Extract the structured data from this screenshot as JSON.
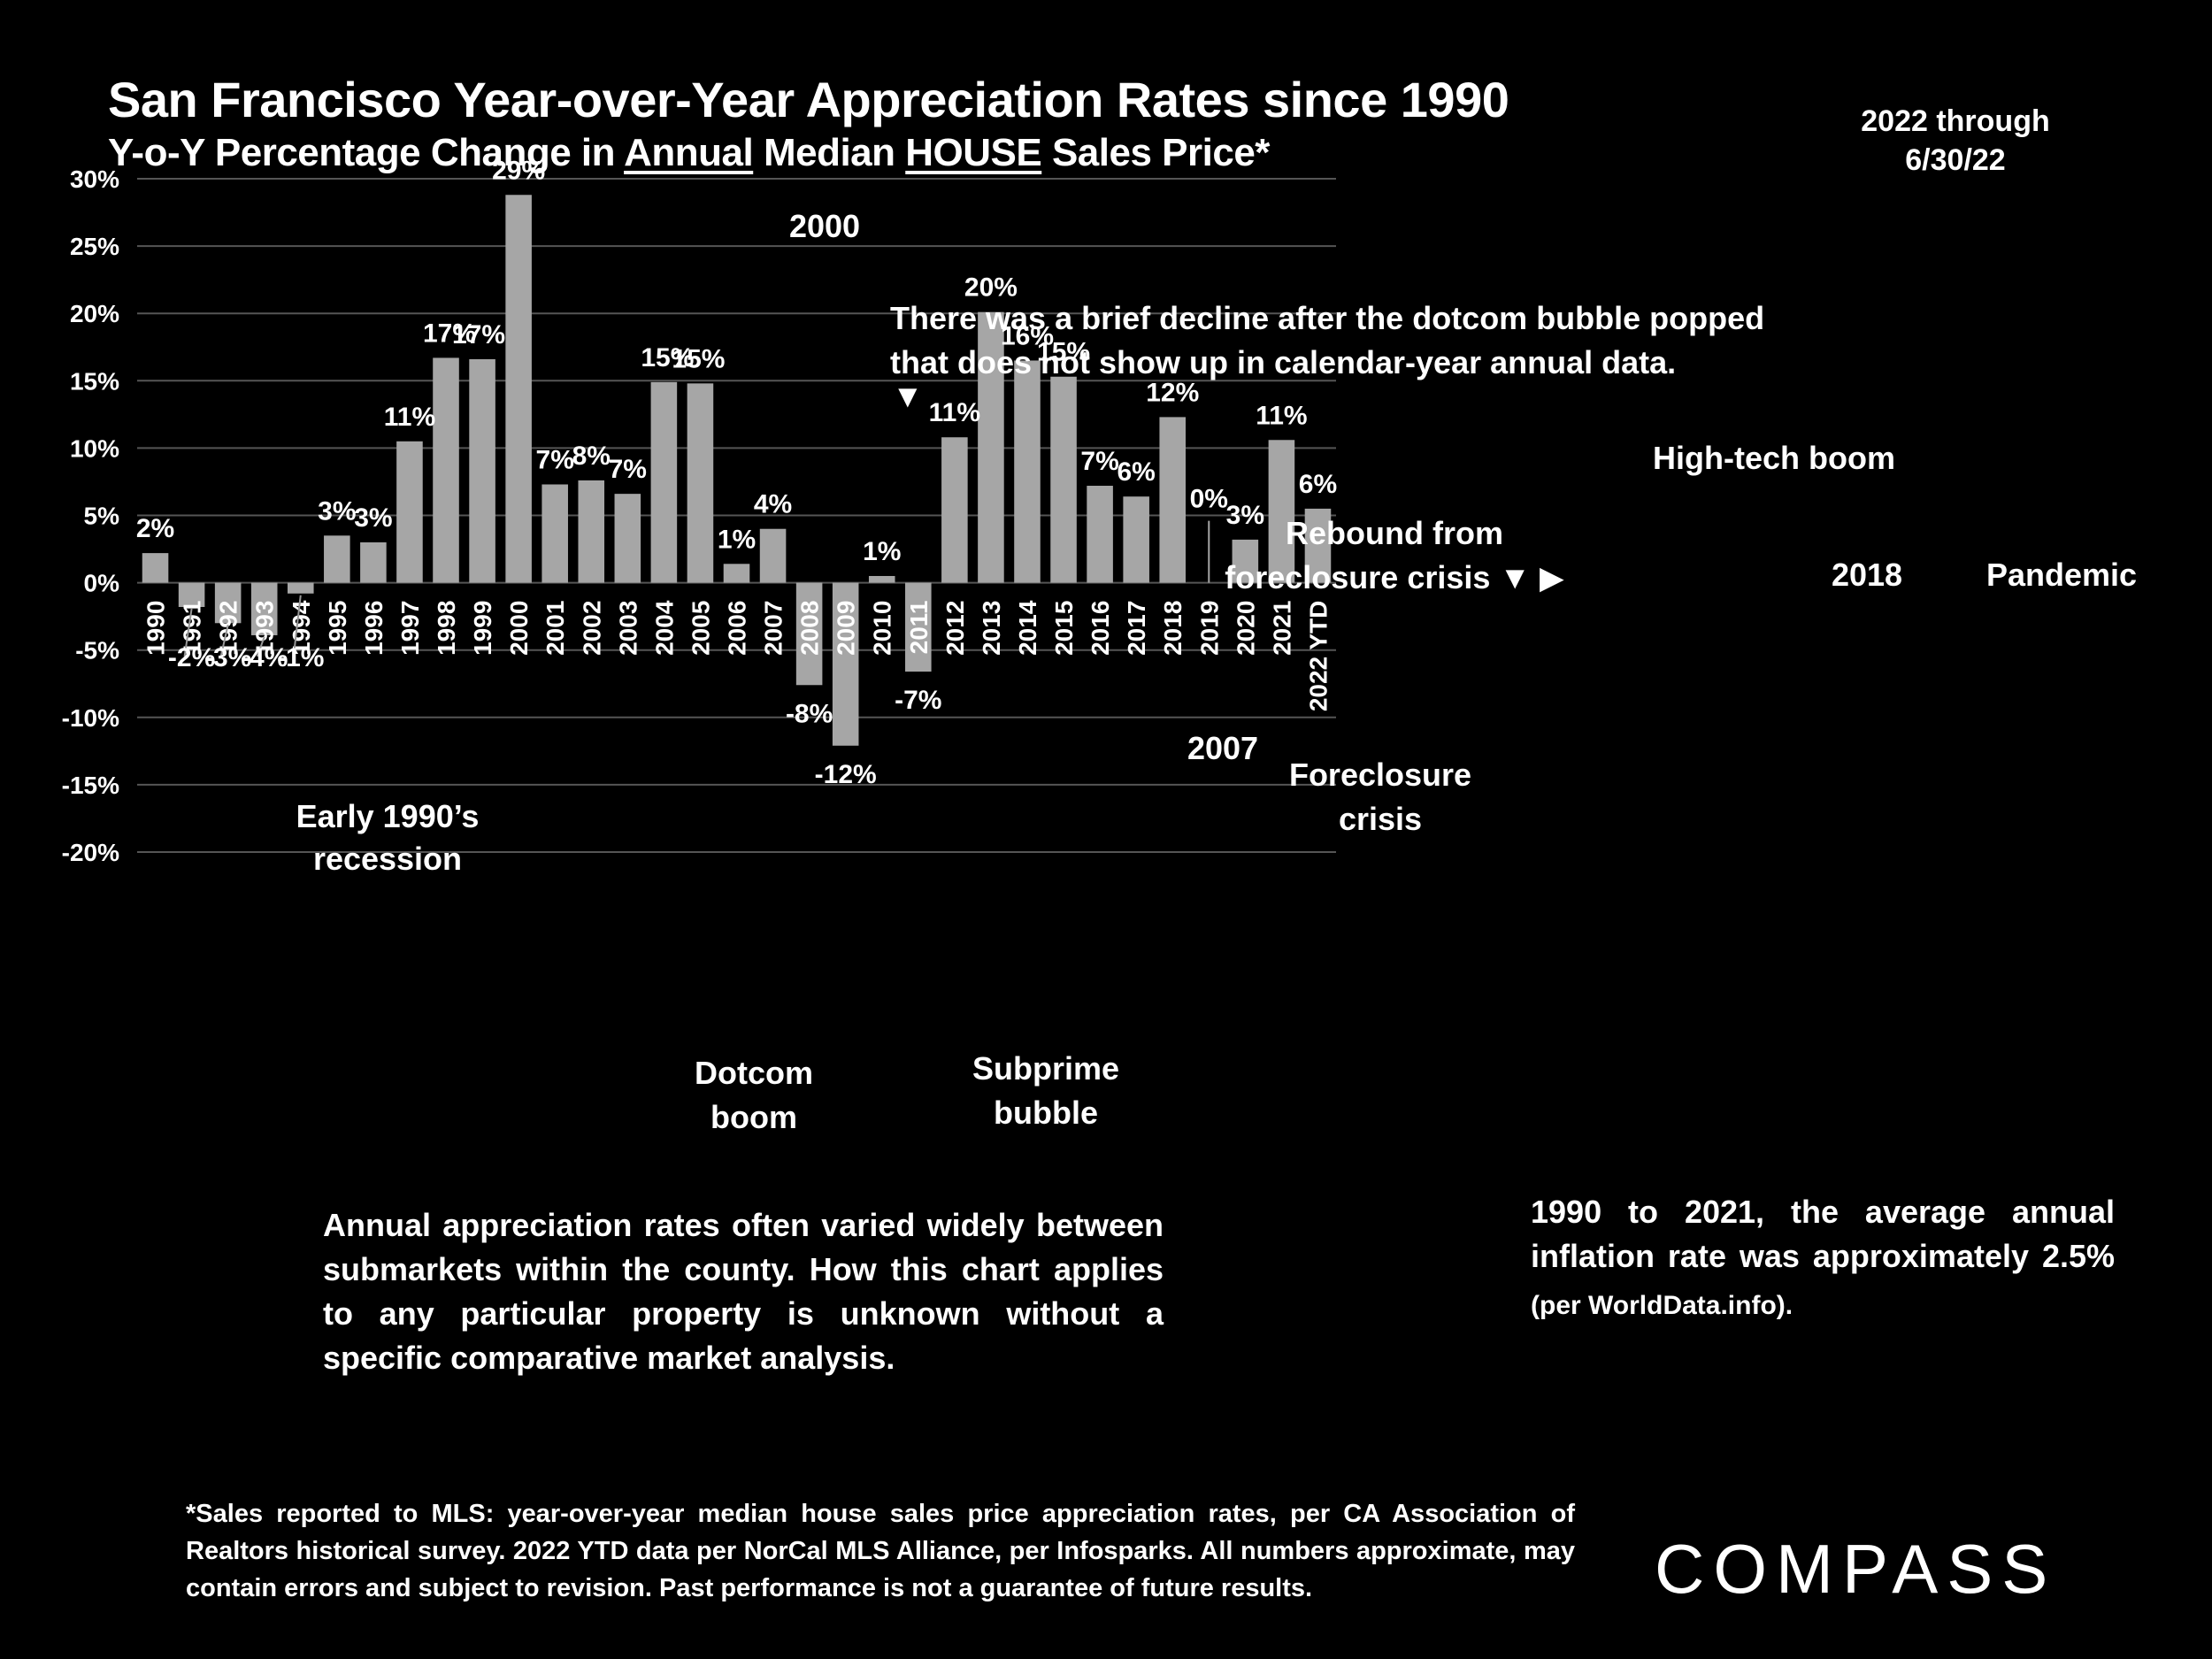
{
  "header": {
    "title": "San Francisco Year-over-Year Appreciation Rates since 1990",
    "subtitle_parts": [
      "Y-o-Y Percentage Change in ",
      "Annual",
      " Median ",
      "HOUSE",
      " Sales Price*"
    ],
    "as_of_line1": "2022 through",
    "as_of_line2": "6/30/22"
  },
  "chart_data": {
    "type": "bar",
    "title": "San Francisco Year-over-Year Appreciation Rates since 1990",
    "subtitle": "Y-o-Y Percentage Change in Annual Median HOUSE Sales Price*",
    "xlabel": "",
    "ylabel": "",
    "ylim": [
      -20,
      30
    ],
    "yticks": [
      30,
      25,
      20,
      15,
      10,
      5,
      0,
      -5,
      -10,
      -15,
      -20
    ],
    "ytick_labels": [
      "30%",
      "25%",
      "20%",
      "15%",
      "10%",
      "5%",
      "0%",
      "-5%",
      "-10%",
      "-15%",
      "-20%"
    ],
    "grid": true,
    "bar_color": "#a6a6a6",
    "categories": [
      "1990",
      "1991",
      "1992",
      "1993",
      "1994",
      "1995",
      "1996",
      "1997",
      "1998",
      "1999",
      "2000",
      "2001",
      "2002",
      "2003",
      "2004",
      "2005",
      "2006",
      "2007",
      "2008",
      "2009",
      "2010",
      "2011",
      "2012",
      "2013",
      "2014",
      "2015",
      "2016",
      "2017",
      "2018",
      "2019",
      "2020",
      "2021",
      "2022 YTD"
    ],
    "values": [
      2.2,
      -1.8,
      -3.0,
      -3.9,
      -0.8,
      3.5,
      3.0,
      10.5,
      16.7,
      16.6,
      28.8,
      7.3,
      7.6,
      6.6,
      14.9,
      14.8,
      1.4,
      4.0,
      -7.6,
      -12.1,
      0.5,
      -6.6,
      10.8,
      20.1,
      16.5,
      15.3,
      7.2,
      6.4,
      12.3,
      0.0,
      3.2,
      10.6,
      5.5
    ],
    "data_labels": [
      "2%",
      "-2%",
      "-3%",
      "-4%",
      "-1%",
      "3%",
      "3%",
      "11%",
      "17%",
      "17%",
      "29%",
      "7%",
      "8%",
      "7%",
      "15%",
      "15%",
      "1%",
      "4%",
      "-8%",
      "-12%",
      "1%",
      "-7%",
      "11%",
      "20%",
      "16%",
      "15%",
      "7%",
      "6%",
      "12%",
      "0%",
      "3%",
      "11%",
      "6%"
    ],
    "annotations": [
      {
        "id": "early-1990s",
        "lines": [
          "Early 1990’s",
          "recession"
        ]
      },
      {
        "id": "year-2000",
        "lines": [
          "2000"
        ]
      },
      {
        "id": "dotcom-decline",
        "lines": [
          "There was a brief decline after the dotcom bubble popped",
          "that does not show up in calendar-year annual data."
        ],
        "marker": "▼"
      },
      {
        "id": "dotcom-boom",
        "lines": [
          "Dotcom",
          "boom"
        ]
      },
      {
        "id": "subprime",
        "lines": [
          "Subprime",
          "bubble"
        ]
      },
      {
        "id": "year-2007",
        "lines": [
          "2007"
        ]
      },
      {
        "id": "foreclosure",
        "lines": [
          "Foreclosure",
          "crisis"
        ]
      },
      {
        "id": "rebound",
        "lines": [
          "Rebound from",
          "foreclosure crisis ▼ ▶"
        ]
      },
      {
        "id": "high-tech",
        "lines": [
          "High-tech boom"
        ]
      },
      {
        "id": "year-2018",
        "lines": [
          "2018"
        ]
      },
      {
        "id": "pandemic",
        "lines": [
          "Pandemic"
        ]
      }
    ]
  },
  "notes": {
    "left": "Annual appreciation rates often varied widely between submarkets within the county. How this chart applies to any particular property is unknown without a specific comparative market analysis.",
    "right_main": "1990 to 2021, the average annual inflation rate was approximately 2.5%",
    "right_source": " (per WorldData.info)."
  },
  "footer": {
    "text": "*Sales reported to MLS: year-over-year median house sales price appreciation rates, per CA Association of Realtors historical survey. 2022 YTD data per NorCal MLS Alliance, per Infosparks. All numbers approximate, may contain errors and subject to revision. Past performance is not a guarantee of future results."
  },
  "brand": {
    "logo_text": "COMPASS"
  }
}
